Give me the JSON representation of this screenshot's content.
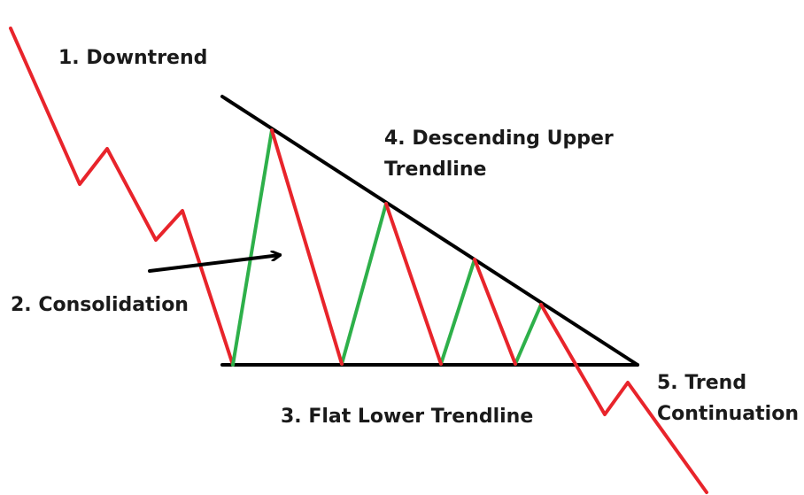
{
  "labels": {
    "downtrend": "1. Downtrend",
    "consolidation": "2. Consolidation",
    "flat_lower": "3. Flat Lower Trendline",
    "descending_upper_line1": "4. Descending Upper",
    "descending_upper_line2": "Trendline",
    "trend_continuation_line1": "5. Trend",
    "trend_continuation_line2": "Continuation"
  },
  "colors": {
    "down_leg": "#e8242b",
    "up_leg": "#2eb04a",
    "trendline": "#000000",
    "background": "#ffffff",
    "text": "#1a1a1a"
  },
  "icons": [
    "arrow-icon"
  ]
}
